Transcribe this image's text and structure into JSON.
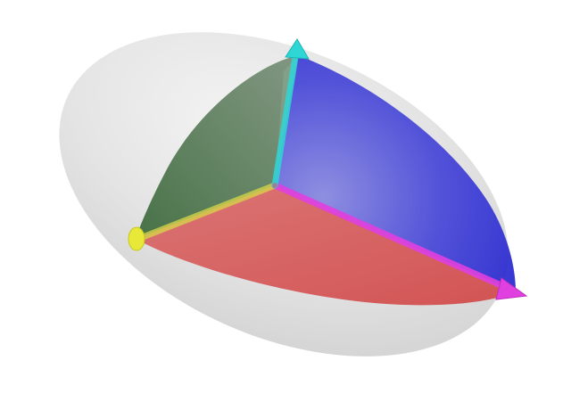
{
  "figure": {
    "subject": "ellipsoid-octant-with-principal-axes",
    "colors": {
      "background": "#ffffff",
      "ellipsoid": "#d9d9d9",
      "face_red": "#e05a5a",
      "face_green": "#4f7a4f",
      "face_blue": "#3c3cd8",
      "axis_cyan": "#2fd6d6",
      "axis_magenta": "#e040e0",
      "axis_yellow": "#e8e838"
    },
    "axes": [
      {
        "name": "axis-cyan",
        "color": "#2fd6d6",
        "direction": "up"
      },
      {
        "name": "axis-magenta",
        "color": "#e040e0",
        "direction": "lower-right"
      },
      {
        "name": "axis-yellow",
        "color": "#e8e838",
        "direction": "left"
      }
    ]
  }
}
